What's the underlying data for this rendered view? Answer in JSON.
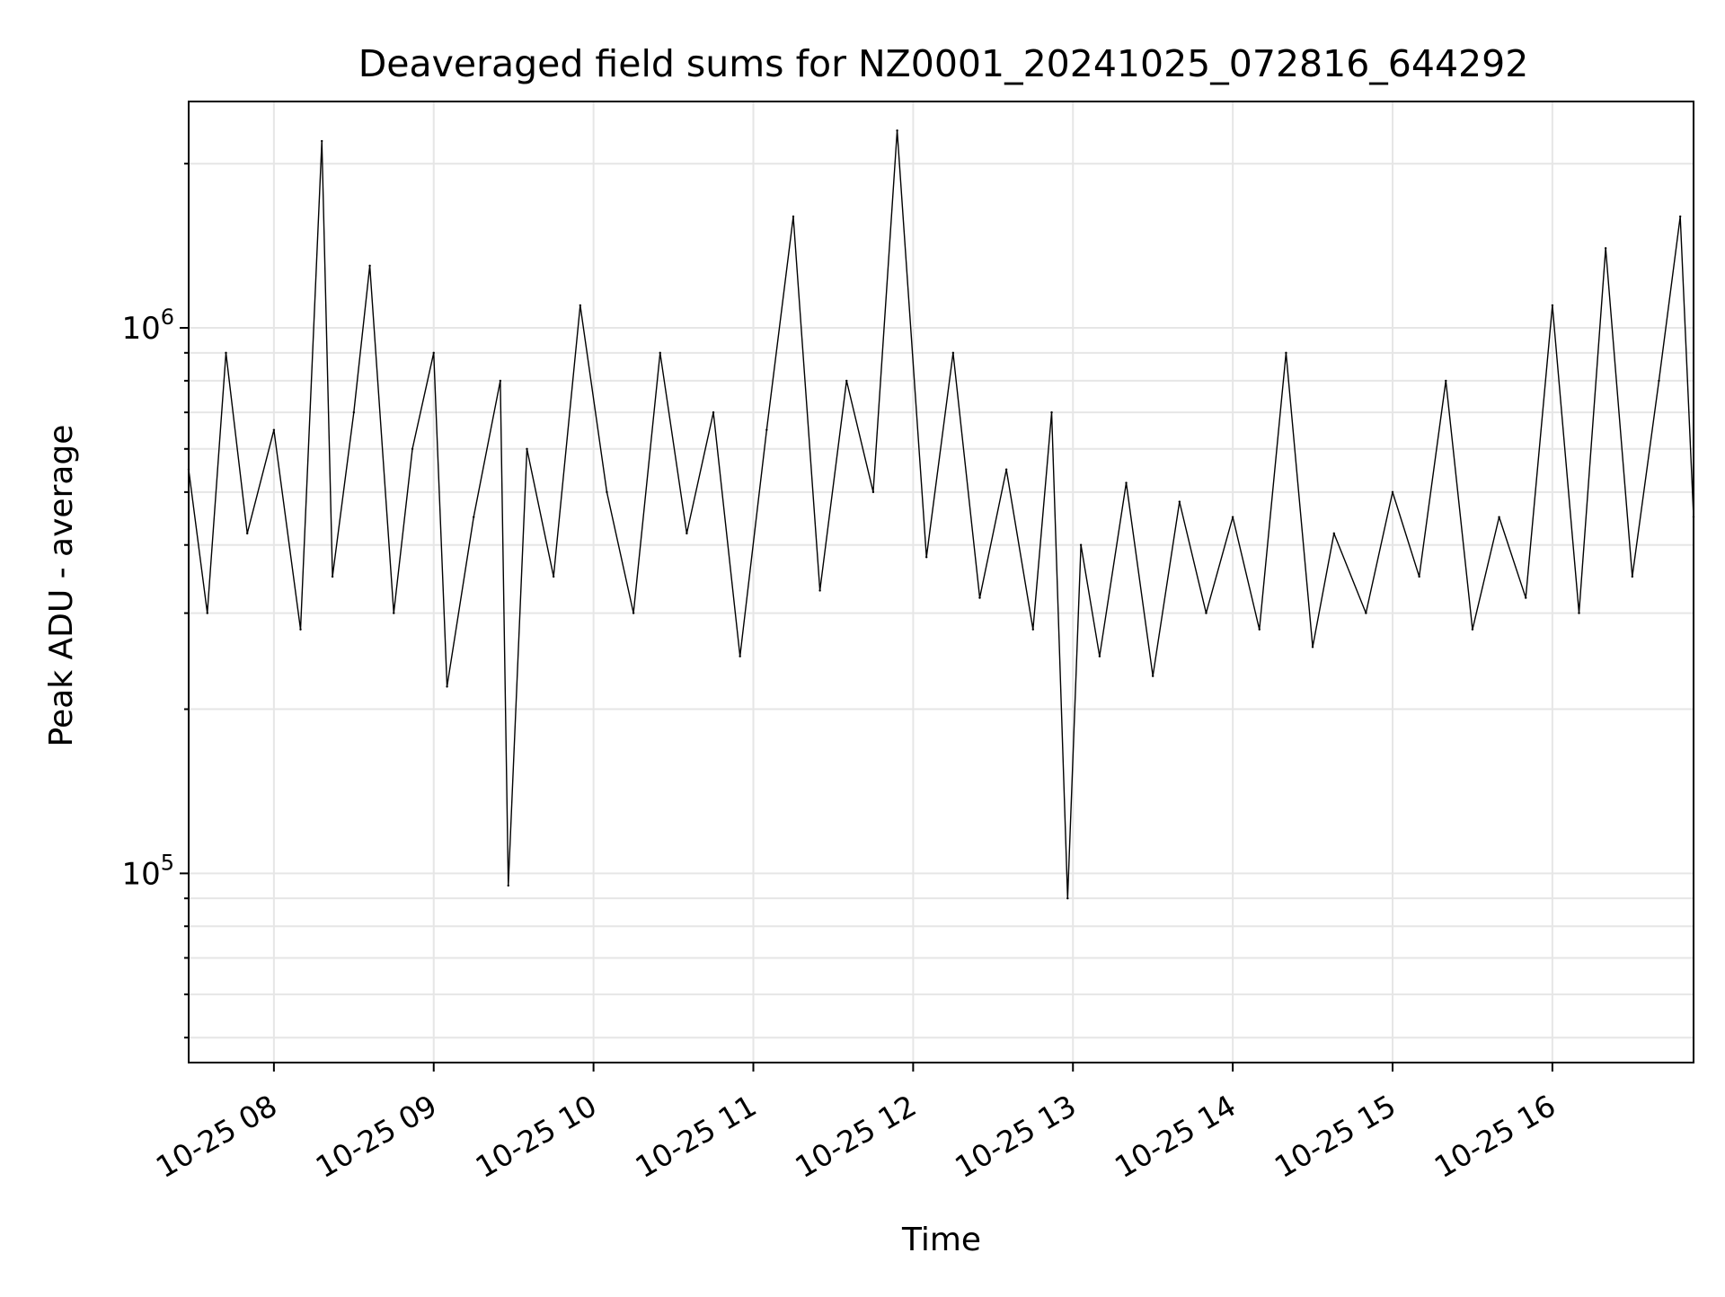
{
  "chart_data": {
    "type": "line",
    "title": "Deaveraged field sums for NZ0001_20241025_072816_644292",
    "xlabel": "Time",
    "ylabel": "Peak ADU - average",
    "yscale": "log",
    "xlim": [
      "2024-10-25T07:28:00",
      "2024-10-25T16:53:00"
    ],
    "ylim": [
      45000,
      2600000
    ],
    "grid": true,
    "line_color": "#000000",
    "grid_color": "#e6e6e6",
    "x_ticks": [
      {
        "value": "2024-10-25T08:00:00",
        "label": "10-25 08"
      },
      {
        "value": "2024-10-25T09:00:00",
        "label": "10-25 09"
      },
      {
        "value": "2024-10-25T10:00:00",
        "label": "10-25 10"
      },
      {
        "value": "2024-10-25T11:00:00",
        "label": "10-25 11"
      },
      {
        "value": "2024-10-25T12:00:00",
        "label": "10-25 12"
      },
      {
        "value": "2024-10-25T13:00:00",
        "label": "10-25 13"
      },
      {
        "value": "2024-10-25T14:00:00",
        "label": "10-25 14"
      },
      {
        "value": "2024-10-25T15:00:00",
        "label": "10-25 15"
      },
      {
        "value": "2024-10-25T16:00:00",
        "label": "10-25 16"
      }
    ],
    "y_ticks": [
      {
        "value": 100000,
        "base": "10",
        "exp": "5"
      },
      {
        "value": 1000000,
        "base": "10",
        "exp": "6"
      }
    ],
    "series": [
      {
        "x": [
          "2024-10-25T07:28:00",
          "2024-10-25T07:35:00",
          "2024-10-25T07:42:00",
          "2024-10-25T07:50:00",
          "2024-10-25T08:00:00",
          "2024-10-25T08:10:00",
          "2024-10-25T08:18:00",
          "2024-10-25T08:22:00",
          "2024-10-25T08:30:00",
          "2024-10-25T08:36:00",
          "2024-10-25T08:45:00",
          "2024-10-25T08:52:00",
          "2024-10-25T09:00:00",
          "2024-10-25T09:05:00",
          "2024-10-25T09:15:00",
          "2024-10-25T09:25:00",
          "2024-10-25T09:28:00",
          "2024-10-25T09:35:00",
          "2024-10-25T09:45:00",
          "2024-10-25T09:55:00",
          "2024-10-25T10:05:00",
          "2024-10-25T10:15:00",
          "2024-10-25T10:25:00",
          "2024-10-25T10:35:00",
          "2024-10-25T10:45:00",
          "2024-10-25T10:55:00",
          "2024-10-25T11:05:00",
          "2024-10-25T11:15:00",
          "2024-10-25T11:25:00",
          "2024-10-25T11:35:00",
          "2024-10-25T11:45:00",
          "2024-10-25T11:54:00",
          "2024-10-25T12:05:00",
          "2024-10-25T12:15:00",
          "2024-10-25T12:25:00",
          "2024-10-25T12:35:00",
          "2024-10-25T12:45:00",
          "2024-10-25T12:52:00",
          "2024-10-25T12:58:00",
          "2024-10-25T13:03:00",
          "2024-10-25T13:10:00",
          "2024-10-25T13:20:00",
          "2024-10-25T13:30:00",
          "2024-10-25T13:40:00",
          "2024-10-25T13:50:00",
          "2024-10-25T14:00:00",
          "2024-10-25T14:10:00",
          "2024-10-25T14:20:00",
          "2024-10-25T14:30:00",
          "2024-10-25T14:38:00",
          "2024-10-25T14:50:00",
          "2024-10-25T15:00:00",
          "2024-10-25T15:10:00",
          "2024-10-25T15:20:00",
          "2024-10-25T15:30:00",
          "2024-10-25T15:40:00",
          "2024-10-25T15:50:00",
          "2024-10-25T16:00:00",
          "2024-10-25T16:10:00",
          "2024-10-25T16:20:00",
          "2024-10-25T16:30:00",
          "2024-10-25T16:40:00",
          "2024-10-25T16:48:00",
          "2024-10-25T16:53:00"
        ],
        "y": [
          550000,
          300000,
          900000,
          420000,
          650000,
          280000,
          2200000,
          350000,
          700000,
          1300000,
          300000,
          600000,
          900000,
          220000,
          450000,
          800000,
          95000,
          600000,
          350000,
          1100000,
          500000,
          300000,
          900000,
          420000,
          700000,
          250000,
          650000,
          1600000,
          330000,
          800000,
          500000,
          2300000,
          380000,
          900000,
          320000,
          550000,
          280000,
          700000,
          90000,
          400000,
          250000,
          520000,
          230000,
          480000,
          300000,
          450000,
          280000,
          900000,
          260000,
          420000,
          300000,
          500000,
          350000,
          800000,
          280000,
          450000,
          320000,
          1100000,
          300000,
          1400000,
          350000,
          800000,
          1600000,
          450000
        ]
      }
    ]
  }
}
